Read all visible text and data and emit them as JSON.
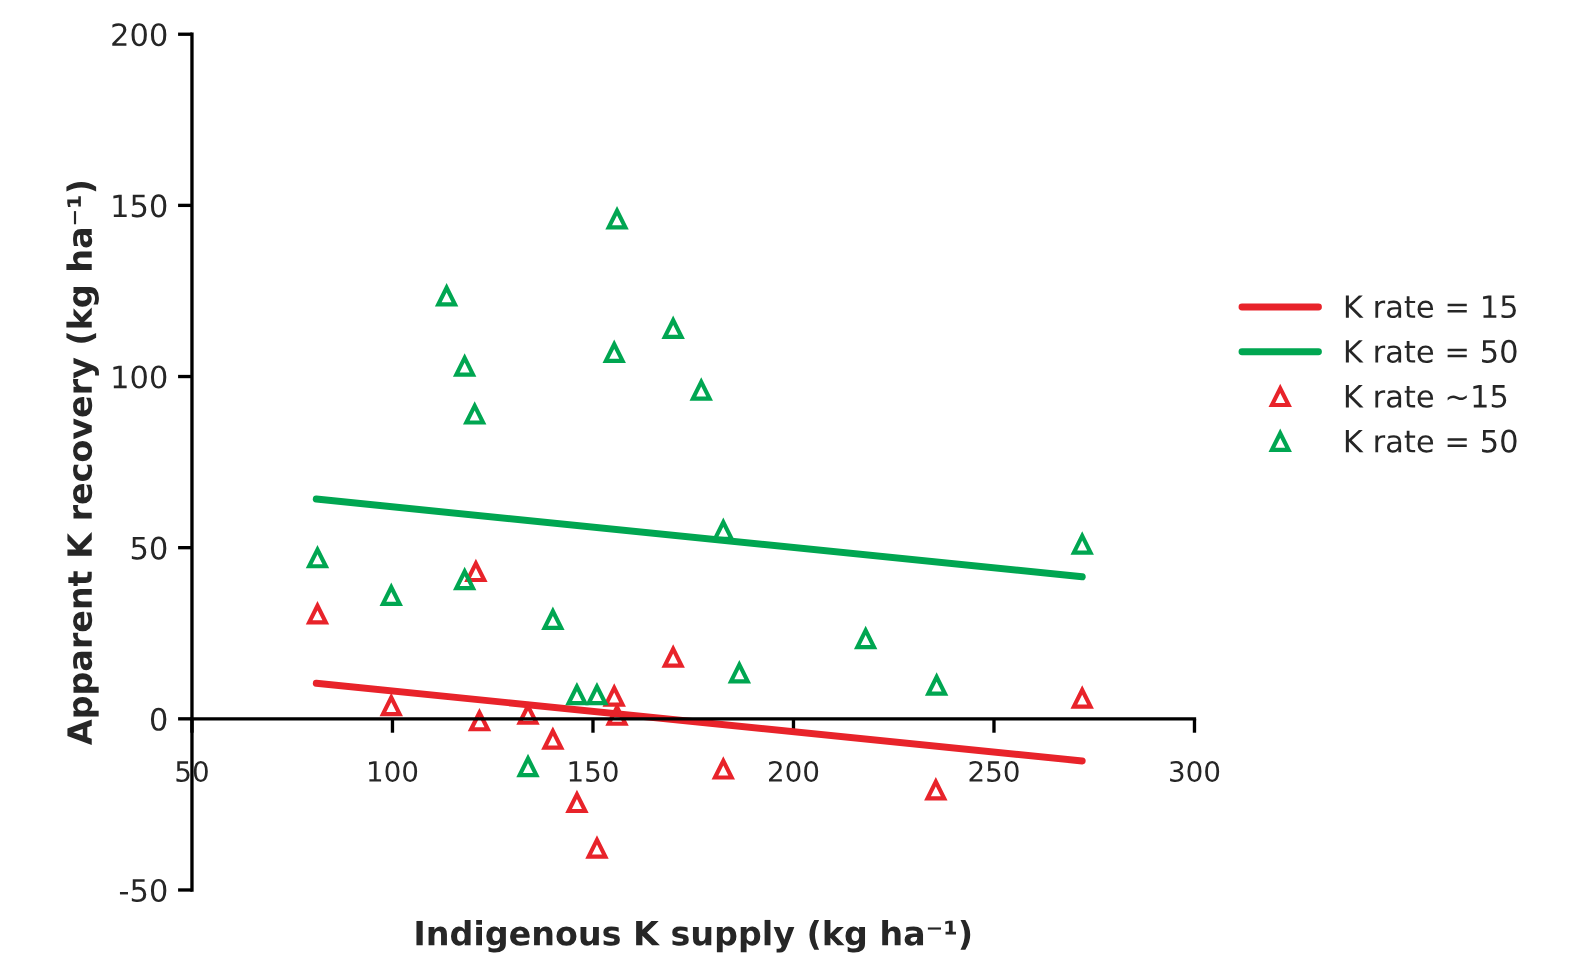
{
  "chart_data": {
    "type": "scatter",
    "xlabel": "Indigenous K supply (kg ha⁻¹)",
    "ylabel": "Apparent K recovery (kg ha⁻¹)",
    "xlim": [
      50,
      300
    ],
    "xticks": [
      50,
      100,
      150,
      200,
      250,
      300
    ],
    "ylim": [
      -50,
      200
    ],
    "yticks": [
      -50,
      0,
      50,
      100,
      150,
      200
    ],
    "legend": "right",
    "series": [
      {
        "name": "K rate = 15",
        "type": "line",
        "color": "#e8232a",
        "marker": "none",
        "x": [
          81,
          272
        ],
        "values": [
          10.4,
          -12.3
        ]
      },
      {
        "name": "K rate = 50",
        "type": "line",
        "color": "#00a651",
        "marker": "none",
        "x": [
          81,
          272
        ],
        "values": [
          64.2,
          41.5
        ]
      },
      {
        "name": "K rate ~15",
        "color": "#e8232a",
        "marker": "triangle",
        "x": [
          81.3,
          120.8,
          99.7,
          121.7,
          133.8,
          140,
          146,
          151,
          155.3,
          156,
          170,
          182.5,
          235.5,
          272
        ],
        "values": [
          30.6,
          43,
          3.8,
          -0.6,
          1.3,
          -6,
          -24.5,
          -37.8,
          6.6,
          1,
          18,
          -14.7,
          -20.8,
          6
        ]
      },
      {
        "name": "K rate = 50",
        "color": "#00a651",
        "marker": "triangle",
        "x": [
          156,
          113.5,
          170,
          155.3,
          118,
          120.5,
          177,
          81.3,
          99.7,
          118,
          140,
          146,
          151,
          133.8,
          182.5,
          272,
          218,
          186.5,
          235.7
        ],
        "values": [
          146,
          123.5,
          114,
          107,
          103,
          89,
          96,
          47,
          36,
          40.6,
          29,
          7,
          7,
          -14,
          55,
          51,
          23.4,
          13.4,
          9.8
        ]
      }
    ]
  }
}
